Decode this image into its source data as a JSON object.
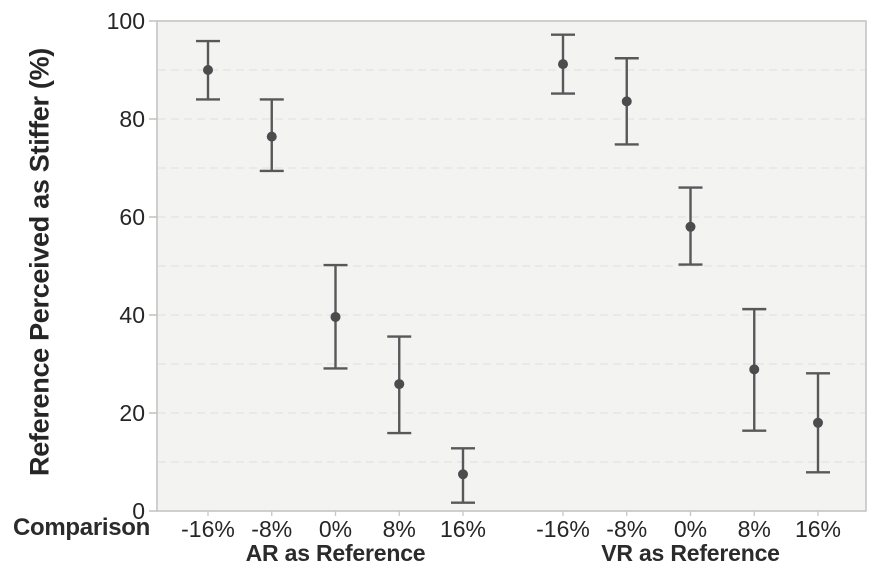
{
  "chart_data": {
    "type": "scatter",
    "subtype": "point-estimates-with-error-bars",
    "title": "",
    "ylabel": "Reference Perceived as Stiffer (%)",
    "xlabel": "Comparison",
    "ylim": [
      0,
      100
    ],
    "yticks": [
      0,
      20,
      40,
      60,
      80,
      100
    ],
    "grid_interval": 10,
    "grid_style": "horizontal-dashed",
    "legend_position": "none",
    "groups": [
      {
        "label": "AR as Reference",
        "categories": [
          "-16%",
          "-8%",
          "0%",
          "8%",
          "16%"
        ],
        "means": [
          90.0,
          76.4,
          39.6,
          25.9,
          7.5
        ],
        "ci_low": [
          84.0,
          69.4,
          29.1,
          15.9,
          1.7
        ],
        "ci_high": [
          95.9,
          84.0,
          50.2,
          35.6,
          12.8
        ]
      },
      {
        "label": "VR as Reference",
        "categories": [
          "-16%",
          "-8%",
          "0%",
          "8%",
          "16%"
        ],
        "means": [
          91.2,
          83.6,
          58.0,
          28.9,
          18.0
        ],
        "ci_low": [
          85.2,
          74.8,
          50.3,
          16.4,
          7.9
        ],
        "ci_high": [
          97.2,
          92.4,
          66.0,
          41.2,
          28.1
        ]
      }
    ],
    "colors": {
      "marker": "#4c4c4e",
      "error_bar": "#58585a",
      "plot_background": "#f3f3f1",
      "grid_line": "#e3e3e0",
      "frame": "#c1c1bf",
      "tick": "#c6c6c4",
      "text": "#262626"
    }
  }
}
